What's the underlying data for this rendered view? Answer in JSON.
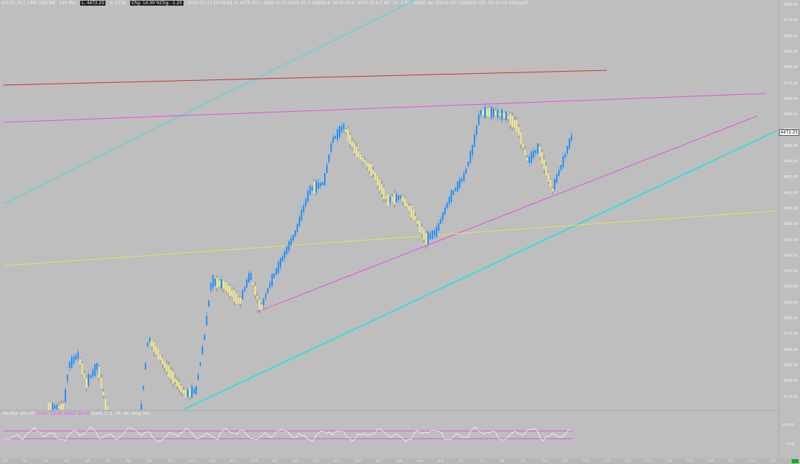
{
  "header": {
    "symbol": "ESU23_FUT_CME [CBV]|M",
    "interval": "240 Min",
    "last_box": "L: 4472.25",
    "last_extra": "S: 2216",
    "change_box": "Chg: 14.00 %Chg: -1.25",
    "details": "2023-07-11 16:59:59 H: 4476.50 L: 4450.50 O: 4456.25 V: 40668 B: 4472.00 A: 4472.25 b:1 BE: 1h: 1 BV: 20685 AV: 20218 OV: 1283242 OD: 00:43:19 (delayed)"
  },
  "price_axis": {
    "labels": [
      "4590.00",
      "4575.00",
      "4560.00",
      "4545.00",
      "4530.00",
      "4515.00",
      "4500.00",
      "4485.00",
      "4470.00",
      "4455.00",
      "4440.00",
      "4425.00",
      "4410.00",
      "4395.00",
      "4380.00",
      "4365.00",
      "4350.00",
      "4335.00",
      "4320.00",
      "4305.00",
      "4290.00",
      "4275.00",
      "4260.00",
      "4245.00",
      "4230.00",
      "4215.00"
    ],
    "last_price": "4472.25"
  },
  "rsi": {
    "title": "RSI",
    "bsi": "BSI: 100.00",
    "line1": "Line1: 70.00",
    "line2": "Line2: 30.00",
    "params": "(Last, 5, 5, 70, 30, Smp, No)",
    "upper_label": "100.00",
    "lower_label": "0.00"
  },
  "time_axis": {
    "labels": [
      "5/31",
      "6/1",
      "6/2",
      "6/5",
      "6/6",
      "6/7",
      "6/8",
      "6/9",
      "6/12",
      "6/13",
      "6/14",
      "6/15",
      "6/16",
      "6/20",
      "6/21",
      "6/22",
      "6/23",
      "6/26",
      "6/27",
      "6/28",
      "6/29",
      "6/30",
      "7/3",
      "7/5",
      "7/6",
      "7/7",
      "7/10",
      "7/11",
      "7/12",
      "7/13",
      "7/14",
      "7/17",
      "7/18",
      "7/19",
      "7/20",
      "7/21",
      "7/24",
      "7/25"
    ]
  },
  "colors": {
    "background": "#bebebe",
    "bull": "#1e90ff",
    "bear": "#f0e68c",
    "red_line": "#d22a2a",
    "magenta_line": "#ee44ee",
    "cyan_line": "#33dddd",
    "yellow_line": "#e6e64a"
  }
}
